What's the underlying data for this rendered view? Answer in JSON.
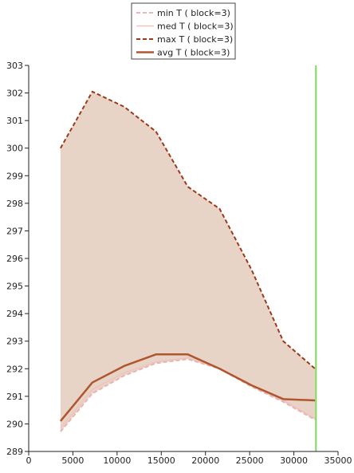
{
  "chart_data": {
    "type": "line",
    "title": "",
    "xlabel": "",
    "ylabel": "",
    "xlim": [
      0,
      35000
    ],
    "ylim": [
      289,
      303
    ],
    "x_ticks": [
      0,
      5000,
      10000,
      15000,
      20000,
      25000,
      30000,
      35000
    ],
    "y_ticks": [
      289,
      290,
      291,
      292,
      293,
      294,
      295,
      296,
      297,
      298,
      299,
      300,
      301,
      302,
      303
    ],
    "x_tick_labels": [
      "0",
      "5000",
      "10000",
      "15000",
      "20000",
      "25000",
      "30000",
      "35000"
    ],
    "y_tick_labels": [
      "289",
      "290",
      "291",
      "292",
      "293",
      "294",
      "295",
      "296",
      "297",
      "298",
      "299",
      "300",
      "301",
      "302",
      "303"
    ],
    "grid": false,
    "legend_position": "top-center",
    "vertical_marker": {
      "x": 32500,
      "color": "#7ed957"
    },
    "band_color": "#e8d3c7",
    "x": [
      3600,
      7200,
      10800,
      14400,
      18000,
      21600,
      25200,
      28800,
      32400
    ],
    "series": [
      {
        "name": "min T ( block=3)",
        "style": "dashed",
        "color": "#e8b4b4",
        "values": [
          289.72,
          291.1,
          291.75,
          292.2,
          292.35,
          292.0,
          291.35,
          290.8,
          290.15
        ]
      },
      {
        "name": "med T ( block=3)",
        "style": "solid",
        "color": "#efc4bc",
        "values": [
          289.85,
          291.25,
          291.85,
          292.25,
          292.4,
          292.0,
          291.4,
          290.85,
          290.2
        ]
      },
      {
        "name": "max T ( block=3)",
        "style": "dashed",
        "color": "#9c3a1a",
        "values": [
          300.0,
          302.05,
          301.5,
          300.6,
          298.6,
          297.8,
          295.6,
          293.0,
          292.0
        ]
      },
      {
        "name": "avg T ( block=3)",
        "style": "solid",
        "color": "#b0562f",
        "values": [
          290.1,
          291.5,
          292.1,
          292.52,
          292.52,
          292.0,
          291.4,
          290.9,
          290.85
        ]
      }
    ]
  }
}
